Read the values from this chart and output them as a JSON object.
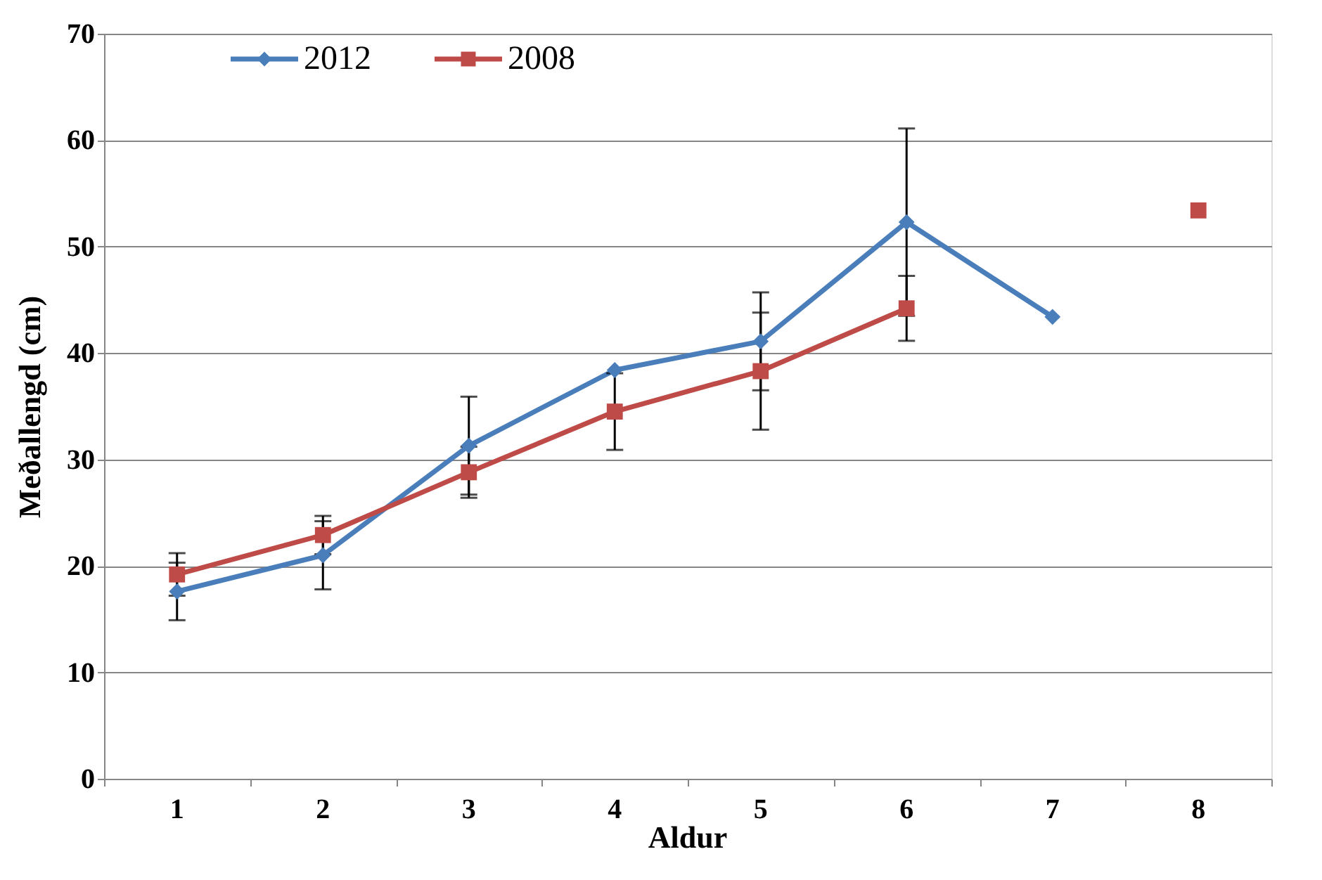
{
  "chart_data": {
    "type": "line",
    "xlabel": "Aldur",
    "ylabel": "Meðallengd (cm)",
    "categories": [
      "1",
      "2",
      "3",
      "4",
      "5",
      "6",
      "7",
      "8"
    ],
    "series": [
      {
        "name": "2012",
        "color": "#4a7ebb",
        "marker": "diamond",
        "values": [
          17.6,
          21.0,
          31.3,
          38.4,
          41.1,
          52.3,
          43.4,
          null
        ],
        "errors": [
          2.7,
          3.2,
          4.6,
          null,
          4.6,
          8.8,
          null,
          null
        ]
      },
      {
        "name": "2008",
        "color": "#be4b48",
        "marker": "square",
        "values": [
          19.2,
          22.9,
          28.8,
          34.5,
          38.3,
          44.2,
          null,
          53.4
        ],
        "errors": [
          2.0,
          1.8,
          2.4,
          3.6,
          5.5,
          3.05,
          null,
          null
        ]
      }
    ],
    "ylim": [
      0,
      70
    ],
    "yticks": [
      0,
      10,
      20,
      30,
      40,
      50,
      60,
      70
    ],
    "grid": "y",
    "legend": "top left",
    "line_style": "solid"
  }
}
